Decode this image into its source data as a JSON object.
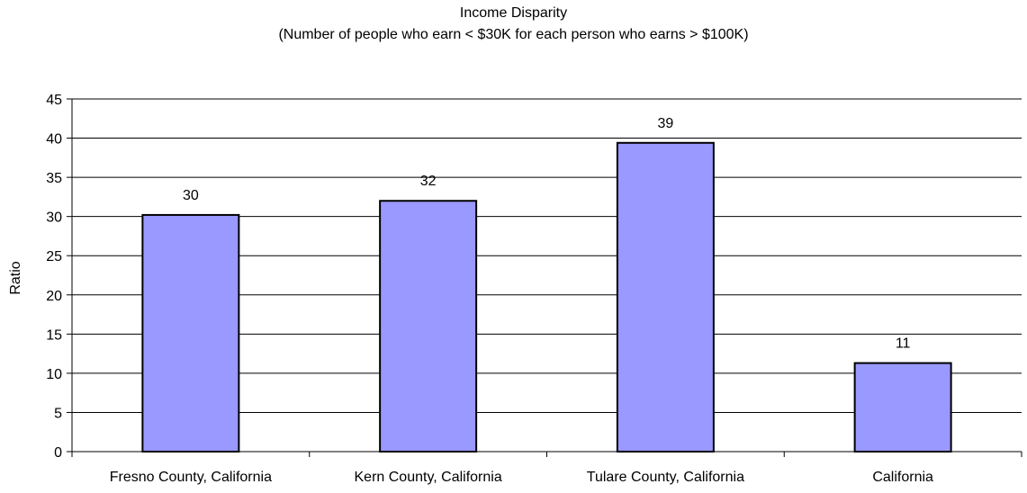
{
  "chart_data": {
    "type": "bar",
    "title": "Income Disparity",
    "subtitle": "(Number of people who earn < $30K for each person who earns > $100K)",
    "xlabel": "",
    "ylabel": "Ratio",
    "categories": [
      "Fresno County, California",
      "Kern County, California",
      "Tulare County, California",
      "California"
    ],
    "values": [
      30.2,
      32.0,
      39.4,
      11.3
    ],
    "data_labels": [
      "30",
      "32",
      "39",
      "11"
    ],
    "yticks": [
      0,
      5,
      10,
      15,
      20,
      25,
      30,
      35,
      40,
      45
    ],
    "ylim": [
      0,
      45
    ],
    "grid": true,
    "legend": "none",
    "bar_color": "#9999ff",
    "bar_edge_color": "#000000"
  }
}
